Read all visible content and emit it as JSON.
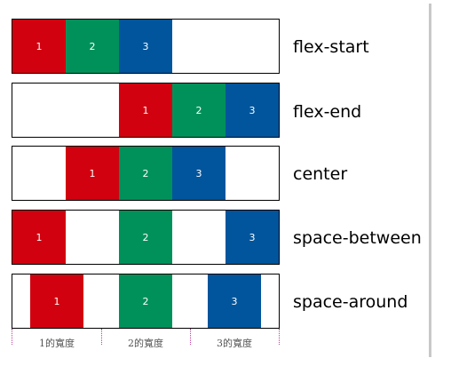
{
  "colors": {
    "item_1": "#d1010f",
    "item_2": "#00915a",
    "item_3": "#00559c"
  },
  "rows": [
    {
      "label": "flex-start",
      "items": [
        "1",
        "2",
        "3"
      ]
    },
    {
      "label": "flex-end",
      "items": [
        "1",
        "2",
        "3"
      ]
    },
    {
      "label": "center",
      "items": [
        "1",
        "2",
        "3"
      ]
    },
    {
      "label": "space-between",
      "items": [
        "1",
        "2",
        "3"
      ]
    },
    {
      "label": "space-around",
      "items": [
        "1",
        "2",
        "3"
      ]
    }
  ],
  "measure": {
    "labels": [
      "1的寬度",
      "2的寬度",
      "3的寬度"
    ]
  }
}
